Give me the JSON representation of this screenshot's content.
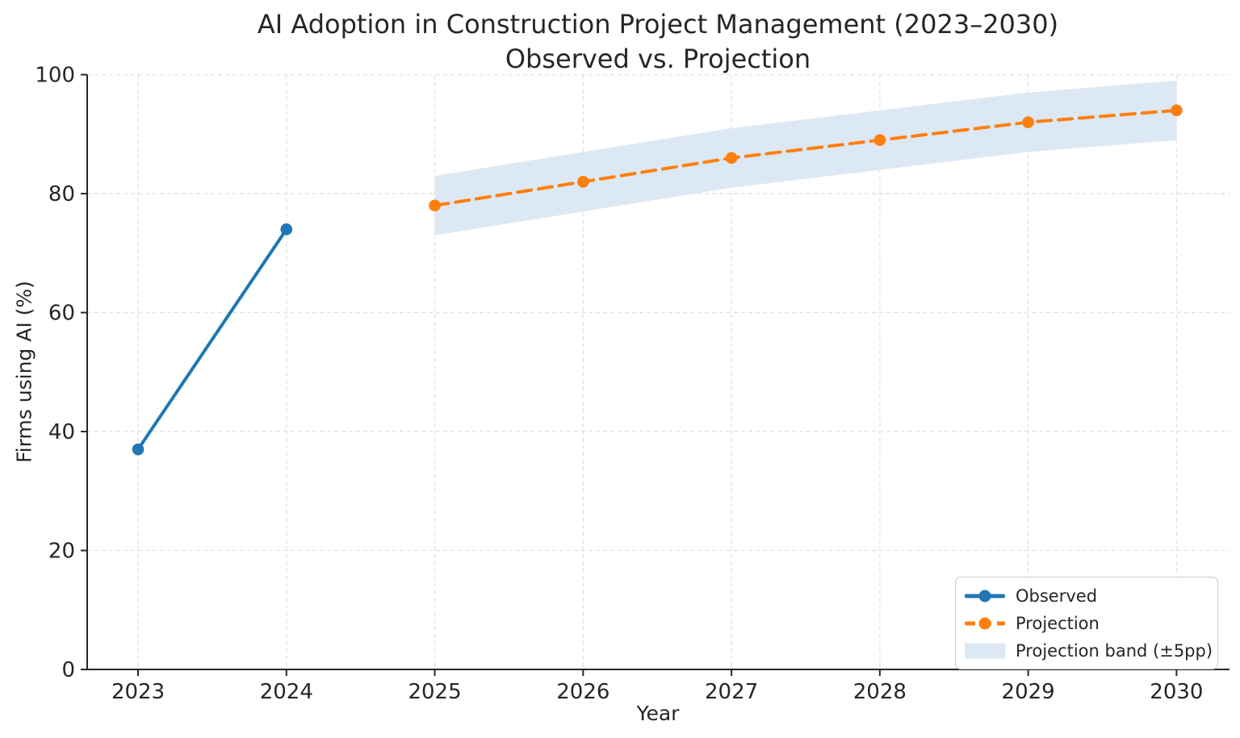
{
  "chart_data": {
    "type": "line",
    "title": "AI Adoption in Construction Project Management (2023–2030)",
    "subtitle": "Observed vs. Projection",
    "xlabel": "Year",
    "ylabel": "Firms using AI (%)",
    "xlim": [
      2022.657,
      2030.357
    ],
    "ylim": [
      0,
      100
    ],
    "x_ticks": [
      2023,
      2024,
      2025,
      2026,
      2027,
      2028,
      2029,
      2030
    ],
    "y_ticks": [
      0,
      20,
      40,
      60,
      80,
      100
    ],
    "grid": true,
    "legend_position": "lower right",
    "series": [
      {
        "name": "Observed",
        "x": [
          2023,
          2024
        ],
        "values": [
          37,
          74
        ],
        "color": "#1f77b4",
        "style": "solid",
        "marker": "circle"
      },
      {
        "name": "Projection",
        "x": [
          2025,
          2026,
          2027,
          2028,
          2029,
          2030
        ],
        "values": [
          78,
          82,
          86,
          89,
          92,
          94
        ],
        "color": "#ff7f0e",
        "style": "dashed",
        "marker": "circle"
      }
    ],
    "band": {
      "name": "Projection band (±5pp)",
      "x": [
        2025,
        2026,
        2027,
        2028,
        2029,
        2030
      ],
      "upper": [
        83,
        87,
        91,
        94,
        97,
        99
      ],
      "lower": [
        73,
        77,
        81,
        84,
        87,
        89
      ],
      "color": "#dce8f3"
    },
    "legend_items": [
      {
        "label": "Observed"
      },
      {
        "label": "Projection"
      },
      {
        "label": "Projection band (±5pp)"
      }
    ],
    "colors": {
      "observed": "#1f77b4",
      "projection": "#ff7f0e",
      "band": "#dce8f3",
      "axis": "#262626",
      "grid": "#dcdcdc",
      "background": "#ffffff"
    }
  }
}
